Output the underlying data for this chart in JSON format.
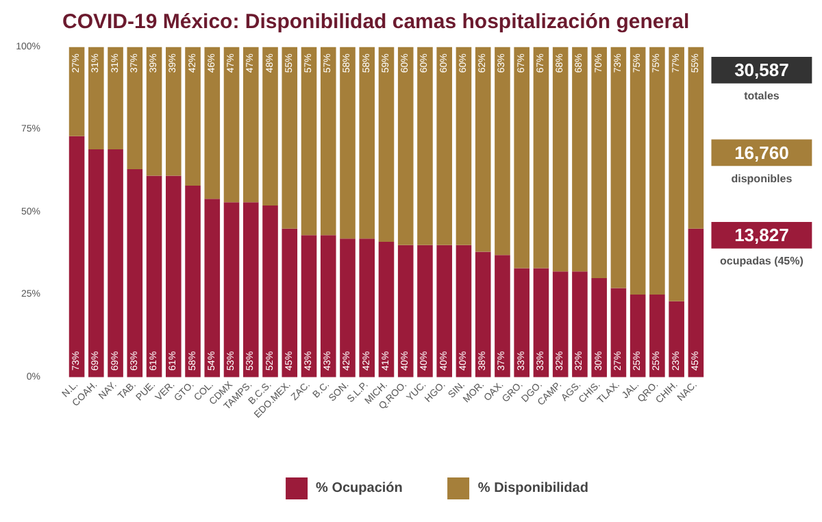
{
  "chart_data": {
    "type": "bar",
    "title": "COVID-19 México: Disponibilidad camas hospitalización general",
    "categories": [
      "N.L.",
      "COAH.",
      "NAY.",
      "TAB.",
      "PUE.",
      "VER.",
      "GTO.",
      "COL.",
      "CDMX",
      "TAMPS.",
      "B.C.S.",
      "EDO.MEX.",
      "ZAC.",
      "B.C.",
      "SON.",
      "S.L.P.",
      "MICH.",
      "Q.ROO.",
      "YUC.",
      "HGO.",
      "SIN.",
      "MOR.",
      "OAX.",
      "GRO.",
      "DGO.",
      "CAMP.",
      "AGS.",
      "CHIS.",
      "TLAX.",
      "JAL.",
      "QRO.",
      "CHIH.",
      "NAC."
    ],
    "series": [
      {
        "name": "% Ocupación",
        "color": "#9b1b3a",
        "values": [
          73,
          69,
          69,
          63,
          61,
          61,
          58,
          54,
          53,
          53,
          52,
          45,
          43,
          43,
          42,
          42,
          41,
          40,
          40,
          40,
          40,
          38,
          37,
          33,
          33,
          32,
          32,
          30,
          27,
          25,
          25,
          23,
          45
        ],
        "value_labels": [
          "73%",
          "69%",
          "69%",
          "63%",
          "61%",
          "61%",
          "58%",
          "54%",
          "53%",
          "53%",
          "52%",
          "45%",
          "43%",
          "43%",
          "42%",
          "42%",
          "41%",
          "40%",
          "40%",
          "40%",
          "40%",
          "38%",
          "37%",
          "33%",
          "33%",
          "32%",
          "32%",
          "30%",
          "27%",
          "25%",
          "25%",
          "23%",
          "45%"
        ]
      },
      {
        "name": "% Disponibilidad",
        "color": "#a57f3a",
        "values": [
          27,
          31,
          31,
          37,
          39,
          39,
          42,
          46,
          47,
          47,
          48,
          55,
          57,
          57,
          58,
          58,
          59,
          60,
          60,
          60,
          60,
          62,
          63,
          67,
          67,
          68,
          68,
          70,
          73,
          75,
          75,
          77,
          55
        ],
        "value_labels": [
          "27%",
          "31%",
          "31%",
          "37%",
          "39%",
          "39%",
          "42%",
          "46%",
          "47%",
          "47%",
          "48%",
          "55%",
          "57%",
          "57%",
          "58%",
          "58%",
          "59%",
          "60%",
          "60%",
          "60%",
          "60%",
          "62%",
          "63%",
          "67%",
          "67%",
          "68%",
          "68%",
          "70%",
          "73%",
          "75%",
          "75%",
          "77%",
          "55%"
        ]
      }
    ],
    "stacked": true,
    "ylim": [
      0,
      100
    ],
    "yticks": [
      {
        "value": 0,
        "label": "0%"
      },
      {
        "value": 25,
        "label": "25%"
      },
      {
        "value": 50,
        "label": "50%"
      },
      {
        "value": 75,
        "label": "75%"
      },
      {
        "value": 100,
        "label": "100%"
      }
    ],
    "legend": "bottom",
    "annotations": [
      "30,587",
      "totales",
      "16,760",
      "disponibles",
      "13,827",
      "ocupadas (45%)"
    ]
  }
}
